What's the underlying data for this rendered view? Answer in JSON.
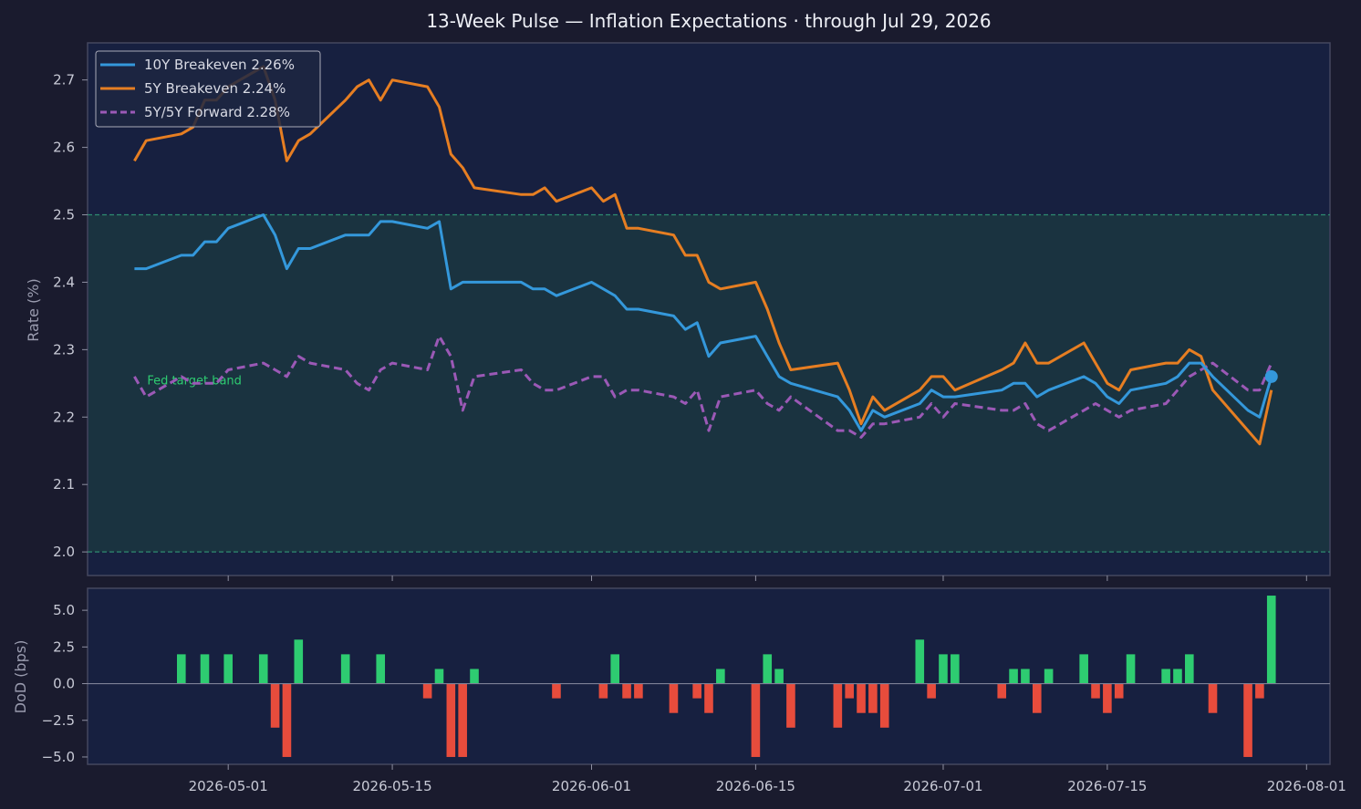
{
  "title": "13-Week Pulse — Inflation Expectations  ·  through Jul 29, 2026",
  "colors": {
    "background": "#1a1b2e",
    "axes_bg": "#172040",
    "band": "#1a3340",
    "band_line": "#2e8b70",
    "be10": "#3498db",
    "be5": "#e67e22",
    "fwd": "#9b59b6",
    "up": "#2ecc71",
    "down": "#e74c3c",
    "spine": "#44475f"
  },
  "chart_data": [
    {
      "type": "line",
      "ylabel": "Rate (%)",
      "ylim": [
        1.965,
        2.755
      ],
      "yticks": [
        "2.0",
        "2.1",
        "2.2",
        "2.3",
        "2.4",
        "2.5",
        "2.6",
        "2.7"
      ],
      "band": {
        "label": "Fed target band",
        "low": 2.0,
        "high": 2.5
      },
      "legend_position": "top-left",
      "x": [
        "2026-04-23",
        "2026-04-24",
        "2026-04-27",
        "2026-04-28",
        "2026-04-29",
        "2026-04-30",
        "2026-05-01",
        "2026-05-04",
        "2026-05-05",
        "2026-05-06",
        "2026-05-07",
        "2026-05-08",
        "2026-05-11",
        "2026-05-12",
        "2026-05-13",
        "2026-05-14",
        "2026-05-15",
        "2026-05-18",
        "2026-05-19",
        "2026-05-20",
        "2026-05-21",
        "2026-05-22",
        "2026-05-26",
        "2026-05-27",
        "2026-05-28",
        "2026-05-29",
        "2026-06-01",
        "2026-06-02",
        "2026-06-03",
        "2026-06-04",
        "2026-06-05",
        "2026-06-08",
        "2026-06-09",
        "2026-06-10",
        "2026-06-11",
        "2026-06-12",
        "2026-06-15",
        "2026-06-16",
        "2026-06-17",
        "2026-06-18",
        "2026-06-22",
        "2026-06-23",
        "2026-06-24",
        "2026-06-25",
        "2026-06-26",
        "2026-06-29",
        "2026-06-30",
        "2026-07-01",
        "2026-07-02",
        "2026-07-06",
        "2026-07-07",
        "2026-07-08",
        "2026-07-09",
        "2026-07-10",
        "2026-07-13",
        "2026-07-14",
        "2026-07-15",
        "2026-07-16",
        "2026-07-17",
        "2026-07-20",
        "2026-07-21",
        "2026-07-22",
        "2026-07-23",
        "2026-07-24",
        "2026-07-27",
        "2026-07-28",
        "2026-07-29"
      ],
      "series": [
        {
          "name": "10Y Breakeven",
          "legend": "10Y Breakeven  2.26%",
          "values": [
            2.42,
            2.42,
            2.44,
            2.44,
            2.46,
            2.46,
            2.48,
            2.5,
            2.47,
            2.42,
            2.45,
            2.45,
            2.47,
            2.47,
            2.47,
            2.49,
            2.49,
            2.48,
            2.49,
            2.39,
            2.4,
            2.4,
            2.4,
            2.39,
            2.39,
            2.38,
            2.4,
            2.39,
            2.38,
            2.36,
            2.36,
            2.35,
            2.33,
            2.34,
            2.29,
            2.31,
            2.32,
            2.29,
            2.26,
            2.25,
            2.23,
            2.21,
            2.18,
            2.21,
            2.2,
            2.22,
            2.24,
            2.23,
            2.23,
            2.24,
            2.25,
            2.25,
            2.23,
            2.24,
            2.26,
            2.25,
            2.23,
            2.22,
            2.24,
            2.25,
            2.26,
            2.28,
            2.28,
            2.26,
            2.21,
            2.2,
            2.26
          ]
        },
        {
          "name": "5Y Breakeven",
          "legend": "5Y Breakeven   2.24%",
          "values": [
            2.58,
            2.61,
            2.62,
            2.63,
            2.67,
            2.67,
            2.69,
            2.72,
            2.67,
            2.58,
            2.61,
            2.62,
            2.67,
            2.69,
            2.7,
            2.67,
            2.7,
            2.69,
            2.66,
            2.59,
            2.57,
            2.54,
            2.53,
            2.53,
            2.54,
            2.52,
            2.54,
            2.52,
            2.53,
            2.48,
            2.48,
            2.47,
            2.44,
            2.44,
            2.4,
            2.39,
            2.4,
            2.36,
            2.31,
            2.27,
            2.28,
            2.24,
            2.19,
            2.23,
            2.21,
            2.24,
            2.26,
            2.26,
            2.24,
            2.27,
            2.28,
            2.31,
            2.28,
            2.28,
            2.31,
            2.28,
            2.25,
            2.24,
            2.27,
            2.28,
            2.28,
            2.3,
            2.29,
            2.24,
            2.18,
            2.16,
            2.24
          ]
        },
        {
          "name": "5Y/5Y Forward",
          "legend": "5Y/5Y Forward  2.28%",
          "values": [
            2.26,
            2.23,
            2.26,
            2.25,
            2.25,
            2.25,
            2.27,
            2.28,
            2.27,
            2.26,
            2.29,
            2.28,
            2.27,
            2.25,
            2.24,
            2.27,
            2.28,
            2.27,
            2.32,
            2.29,
            2.21,
            2.26,
            2.27,
            2.25,
            2.24,
            2.24,
            2.26,
            2.26,
            2.23,
            2.24,
            2.24,
            2.23,
            2.22,
            2.24,
            2.18,
            2.23,
            2.24,
            2.22,
            2.21,
            2.23,
            2.18,
            2.18,
            2.17,
            2.19,
            2.19,
            2.2,
            2.22,
            2.2,
            2.22,
            2.21,
            2.21,
            2.22,
            2.19,
            2.18,
            2.21,
            2.22,
            2.21,
            2.2,
            2.21,
            2.22,
            2.24,
            2.26,
            2.27,
            2.28,
            2.24,
            2.24,
            2.28
          ]
        }
      ],
      "last_point": {
        "date": "2026-07-29",
        "value": 2.26
      }
    },
    {
      "type": "bar",
      "ylabel": "DoD (bps)",
      "ylim": [
        -5.5,
        6.5
      ],
      "yticks": [
        "−5.0",
        "−2.5",
        "0.0",
        "2.5",
        "5.0"
      ],
      "xlim": [
        "2026-04-19",
        "2026-08-03"
      ],
      "xticks": [
        "2026-05-01",
        "2026-05-15",
        "2026-06-01",
        "2026-06-15",
        "2026-07-01",
        "2026-07-15",
        "2026-08-01"
      ],
      "x": [
        "2026-04-27",
        "2026-04-28",
        "2026-04-29",
        "2026-04-30",
        "2026-05-01",
        "2026-05-04",
        "2026-05-05",
        "2026-05-06",
        "2026-05-07",
        "2026-05-08",
        "2026-05-11",
        "2026-05-12",
        "2026-05-13",
        "2026-05-14",
        "2026-05-15",
        "2026-05-18",
        "2026-05-19",
        "2026-05-20",
        "2026-05-21",
        "2026-05-22",
        "2026-05-26",
        "2026-05-27",
        "2026-05-28",
        "2026-05-29",
        "2026-06-01",
        "2026-06-02",
        "2026-06-03",
        "2026-06-04",
        "2026-06-05",
        "2026-06-08",
        "2026-06-09",
        "2026-06-10",
        "2026-06-11",
        "2026-06-12",
        "2026-06-15",
        "2026-06-16",
        "2026-06-17",
        "2026-06-18",
        "2026-06-22",
        "2026-06-23",
        "2026-06-24",
        "2026-06-25",
        "2026-06-26",
        "2026-06-29",
        "2026-06-30",
        "2026-07-01",
        "2026-07-02",
        "2026-07-06",
        "2026-07-07",
        "2026-07-08",
        "2026-07-09",
        "2026-07-10",
        "2026-07-13",
        "2026-07-14",
        "2026-07-15",
        "2026-07-16",
        "2026-07-17",
        "2026-07-20",
        "2026-07-21",
        "2026-07-22",
        "2026-07-23",
        "2026-07-24",
        "2026-07-27",
        "2026-07-28",
        "2026-07-29"
      ],
      "values": [
        2,
        0,
        2,
        0,
        2,
        2,
        -3,
        -5,
        3,
        0,
        2,
        0,
        0,
        2,
        0,
        -1,
        1,
        -5,
        -5,
        1,
        0,
        0,
        0,
        -1,
        0,
        -1,
        2,
        -1,
        -1,
        -2,
        0,
        -1,
        -2,
        1,
        -5,
        2,
        1,
        -3,
        -3,
        -1,
        -2,
        -2,
        -3,
        3,
        -1,
        2,
        2,
        -1,
        1,
        1,
        -2,
        1,
        2,
        -1,
        -2,
        -1,
        2,
        1,
        1,
        2,
        0,
        -2,
        -5,
        -1,
        6
      ]
    }
  ]
}
